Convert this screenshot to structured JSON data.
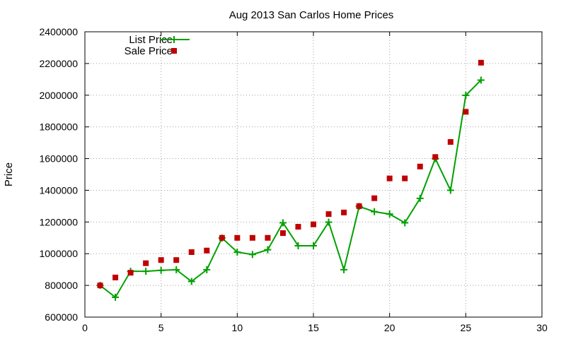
{
  "chart_data": {
    "type": "scatter",
    "title": "Aug 2013 San Carlos Home Prices",
    "xlabel": "",
    "ylabel": "Price",
    "xlim": [
      0,
      30
    ],
    "ylim": [
      600000,
      2400000
    ],
    "xticks": [
      0,
      5,
      10,
      15,
      20,
      25,
      30
    ],
    "yticks": [
      600000,
      800000,
      1000000,
      1200000,
      1400000,
      1600000,
      1800000,
      2000000,
      2200000,
      2400000
    ],
    "xtick_labels": [
      "0",
      "5",
      "10",
      "15",
      "20",
      "25",
      "30"
    ],
    "ytick_labels": [
      "600000",
      "800000",
      "1000000",
      "1200000",
      "1400000",
      "1600000",
      "1800000",
      "2000000",
      "2200000",
      "2400000"
    ],
    "grid": true,
    "legend_position": "top-left",
    "series": [
      {
        "name": "List Price",
        "style": "line-points",
        "color": "#00a000",
        "marker": "plus",
        "x": [
          1,
          2,
          3,
          4,
          5,
          6,
          7,
          8,
          9,
          10,
          11,
          12,
          13,
          14,
          15,
          16,
          17,
          18,
          19,
          20,
          21,
          22,
          23,
          24,
          25,
          26
        ],
        "y": [
          800000,
          725000,
          889000,
          889000,
          895000,
          899000,
          825000,
          899000,
          1099000,
          1010000,
          995000,
          1025000,
          1195000,
          1050000,
          1050000,
          1199000,
          899000,
          1298000,
          1265000,
          1250000,
          1195000,
          1349000,
          1600000,
          1400000,
          1999000,
          2095000
        ]
      },
      {
        "name": "Sale Price",
        "style": "points",
        "color": "#c00000",
        "marker": "square",
        "x": [
          1,
          2,
          3,
          4,
          5,
          6,
          7,
          8,
          9,
          10,
          11,
          12,
          13,
          14,
          15,
          16,
          17,
          18,
          19,
          20,
          21,
          22,
          23,
          24,
          25,
          26
        ],
        "y": [
          800000,
          850000,
          880000,
          940000,
          960000,
          960000,
          1010000,
          1020000,
          1100000,
          1100000,
          1100000,
          1100000,
          1130000,
          1170000,
          1185000,
          1250000,
          1260000,
          1300000,
          1350000,
          1475000,
          1475000,
          1550000,
          1610000,
          1705000,
          1895000,
          2205000
        ]
      }
    ]
  }
}
